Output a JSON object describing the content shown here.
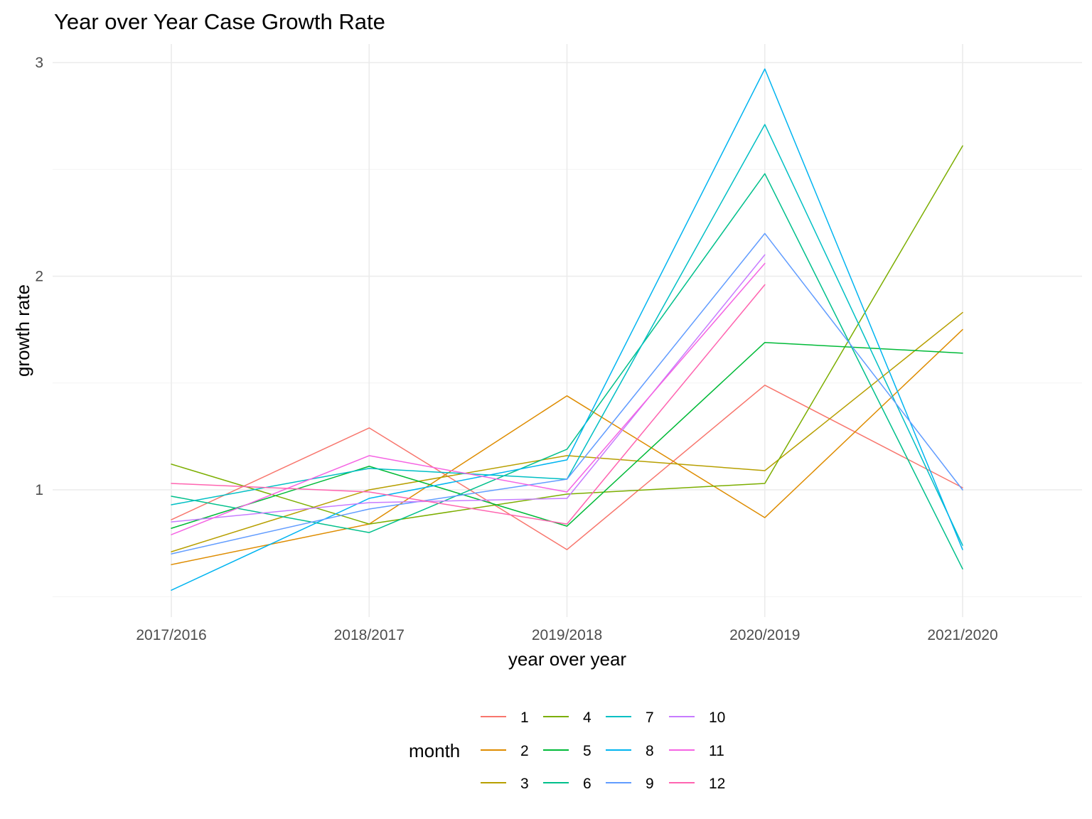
{
  "chart_data": {
    "type": "line",
    "title": "Year over Year Case Growth Rate",
    "xlabel": "year over year",
    "ylabel": "growth rate",
    "categories": [
      "2017/2016",
      "2018/2017",
      "2019/2018",
      "2020/2019",
      "2021/2020"
    ],
    "ylim": [
      0.43,
      3.08
    ],
    "yticks": [
      1,
      2,
      3
    ],
    "grid": true,
    "legend": {
      "title": "month",
      "position": "bottom"
    },
    "series": [
      {
        "name": "1",
        "color": "#F8766D",
        "values": [
          0.86,
          1.29,
          0.72,
          1.49,
          1.01
        ]
      },
      {
        "name": "2",
        "color": "#DE8C00",
        "values": [
          0.65,
          0.84,
          1.44,
          0.87,
          1.75
        ]
      },
      {
        "name": "3",
        "color": "#B79F00",
        "values": [
          0.71,
          1.0,
          1.16,
          1.09,
          1.83
        ]
      },
      {
        "name": "4",
        "color": "#7CAE00",
        "values": [
          1.12,
          0.84,
          0.98,
          1.03,
          2.61
        ]
      },
      {
        "name": "5",
        "color": "#00BA38",
        "values": [
          0.82,
          1.11,
          0.83,
          1.69,
          1.64
        ]
      },
      {
        "name": "6",
        "color": "#00C08B",
        "values": [
          0.97,
          0.8,
          1.19,
          2.48,
          0.63
        ]
      },
      {
        "name": "7",
        "color": "#00BFC4",
        "values": [
          0.93,
          1.1,
          1.05,
          2.71,
          0.74
        ]
      },
      {
        "name": "8",
        "color": "#00B4F0",
        "values": [
          0.53,
          0.96,
          1.14,
          2.97,
          0.72
        ]
      },
      {
        "name": "9",
        "color": "#619CFF",
        "values": [
          0.7,
          0.91,
          1.05,
          2.2,
          1.0
        ]
      },
      {
        "name": "10",
        "color": "#C77CFF",
        "values": [
          0.85,
          0.94,
          0.96,
          2.1,
          null
        ]
      },
      {
        "name": "11",
        "color": "#F564E3",
        "values": [
          0.79,
          1.16,
          0.99,
          2.06,
          null
        ]
      },
      {
        "name": "12",
        "color": "#FF64B0",
        "values": [
          1.03,
          0.99,
          0.84,
          1.96,
          null
        ]
      }
    ]
  }
}
